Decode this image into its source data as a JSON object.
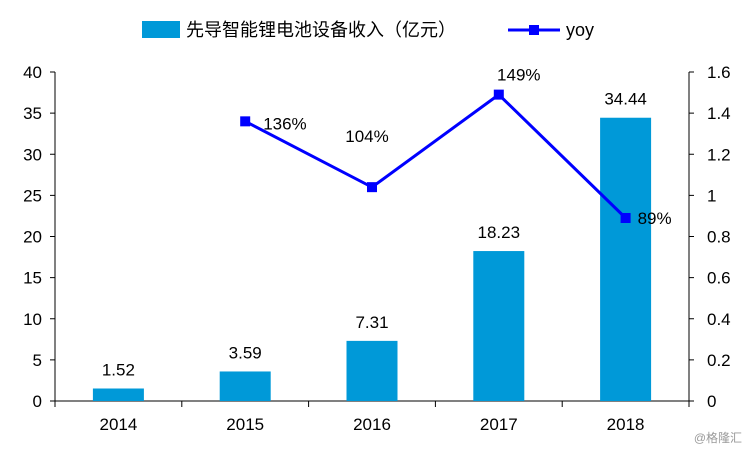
{
  "chart_data": {
    "type": "bar+line",
    "categories": [
      "2014",
      "2015",
      "2016",
      "2017",
      "2018"
    ],
    "series": [
      {
        "name": "先导智能锂电池设备收入（亿元）",
        "type": "bar",
        "axis": "left",
        "values": [
          1.52,
          3.59,
          7.31,
          18.23,
          34.44
        ],
        "labels": [
          "1.52",
          "3.59",
          "7.31",
          "18.23",
          "34.44"
        ],
        "color": "#0099d8"
      },
      {
        "name": "yoy",
        "type": "line",
        "axis": "right",
        "values": [
          null,
          1.36,
          1.04,
          1.49,
          0.89
        ],
        "labels": [
          "",
          "136%",
          "104%",
          "149%",
          "89%"
        ],
        "color": "#0000ff"
      }
    ],
    "y_left": {
      "min": 0,
      "max": 40,
      "step": 5,
      "ticks": [
        "0",
        "5",
        "10",
        "15",
        "20",
        "25",
        "30",
        "35",
        "40"
      ]
    },
    "y_right": {
      "min": 0,
      "max": 1.6,
      "step": 0.2,
      "ticks": [
        "0",
        "0.2",
        "0.4",
        "0.6",
        "0.8",
        "1",
        "1.2",
        "1.4",
        "1.6"
      ]
    },
    "legend_position": "top",
    "grid": false
  },
  "watermark": "@格隆汇"
}
